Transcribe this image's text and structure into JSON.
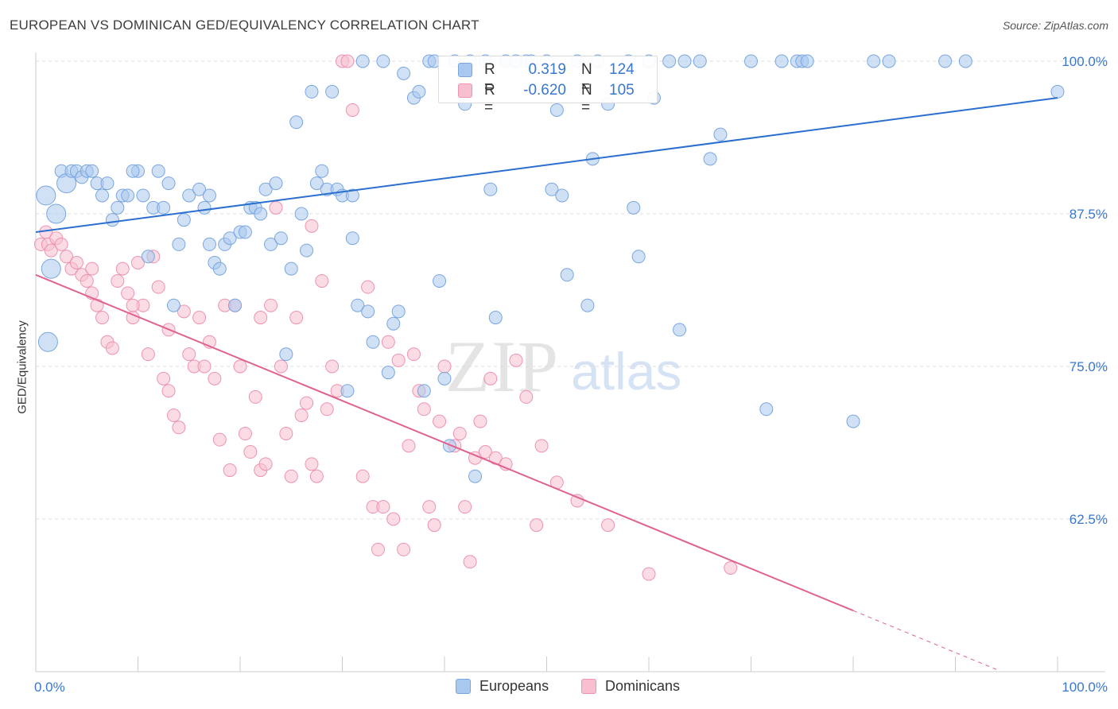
{
  "header": {
    "title": "EUROPEAN VS DOMINICAN GED/EQUIVALENCY CORRELATION CHART",
    "source": "Source: ZipAtlas.com"
  },
  "watermark": {
    "zip": "ZIP",
    "atlas": "atlas"
  },
  "legend": {
    "r_label": "R =",
    "n_label": "N =",
    "rows": [
      {
        "r": "0.319",
        "n": "124"
      },
      {
        "r": "-0.620",
        "n": "105"
      }
    ]
  },
  "colors": {
    "blue_fill": "#a9c8ef",
    "blue_stroke": "#7aa6e0",
    "blue_line": "#2a6fcf",
    "pink_fill": "#f7bfd0",
    "pink_stroke": "#ee93b0",
    "pink_line": "#e0628e",
    "tick_label": "#3a77cf",
    "grid": "#dddddd"
  },
  "chart_data": {
    "type": "scatter",
    "title": "EUROPEAN VS DOMINICAN GED/EQUIVALENCY CORRELATION CHART",
    "xlabel": "",
    "ylabel": "GED/Equivalency",
    "xlim": [
      0,
      100
    ],
    "ylim": [
      50,
      100
    ],
    "x_tick_labels": [
      "0.0%",
      "100.0%"
    ],
    "y_ticks": [
      62.5,
      75.0,
      87.5,
      100.0
    ],
    "y_tick_labels": [
      "62.5%",
      "75.0%",
      "87.5%",
      "100.0%"
    ],
    "grid": true,
    "legend_position": "bottom-center",
    "series": [
      {
        "name": "Europeans",
        "r": 0.319,
        "n": 124,
        "trend": {
          "x": [
            0,
            100
          ],
          "y": [
            86.0,
            97.0
          ]
        },
        "points": [
          [
            1,
            89
          ],
          [
            1.2,
            77
          ],
          [
            1.5,
            83
          ],
          [
            2,
            87.5
          ],
          [
            2.5,
            91
          ],
          [
            3,
            90
          ],
          [
            3.5,
            91
          ],
          [
            4,
            91
          ],
          [
            4.5,
            90.5
          ],
          [
            5,
            91
          ],
          [
            5.5,
            91
          ],
          [
            6,
            90
          ],
          [
            6.5,
            89
          ],
          [
            7,
            90
          ],
          [
            8,
            88
          ],
          [
            8.5,
            89
          ],
          [
            9,
            89
          ],
          [
            10,
            91
          ],
          [
            10.5,
            89
          ],
          [
            11,
            84
          ],
          [
            11.5,
            88
          ],
          [
            12,
            91
          ],
          [
            12.5,
            88
          ],
          [
            13,
            90
          ],
          [
            13.5,
            80
          ],
          [
            14,
            85
          ],
          [
            14.5,
            87
          ],
          [
            15,
            89
          ],
          [
            16,
            89.5
          ],
          [
            16.5,
            88
          ],
          [
            17,
            85
          ],
          [
            17.5,
            83.5
          ],
          [
            18,
            83
          ],
          [
            18.5,
            85
          ],
          [
            19,
            85.5
          ],
          [
            19.5,
            80
          ],
          [
            20,
            86
          ],
          [
            20.5,
            86
          ],
          [
            21,
            88
          ],
          [
            21.5,
            88
          ],
          [
            22,
            87.5
          ],
          [
            22.5,
            89.5
          ],
          [
            23,
            85
          ],
          [
            23.5,
            90
          ],
          [
            24,
            85.5
          ],
          [
            24.5,
            76
          ],
          [
            25,
            83
          ],
          [
            25.5,
            95
          ],
          [
            26,
            87.5
          ],
          [
            26.5,
            84.5
          ],
          [
            27,
            97.5
          ],
          [
            27.5,
            90
          ],
          [
            28,
            91
          ],
          [
            28.5,
            89.5
          ],
          [
            29,
            97.5
          ],
          [
            29.5,
            89.5
          ],
          [
            30,
            89
          ],
          [
            30.5,
            73
          ],
          [
            31,
            85.5
          ],
          [
            31.5,
            80
          ],
          [
            32,
            100
          ],
          [
            32.5,
            79.5
          ],
          [
            33,
            77
          ],
          [
            34,
            100
          ],
          [
            34.5,
            74.5
          ],
          [
            35,
            78.5
          ],
          [
            35.5,
            79.5
          ],
          [
            36,
            99
          ],
          [
            37,
            97
          ],
          [
            37.5,
            97.5
          ],
          [
            38,
            73
          ],
          [
            38.5,
            100
          ],
          [
            39,
            100
          ],
          [
            39.5,
            82
          ],
          [
            40,
            74
          ],
          [
            40.5,
            68.5
          ],
          [
            41,
            100
          ],
          [
            42,
            96.5
          ],
          [
            42.5,
            100
          ],
          [
            43,
            66
          ],
          [
            44,
            100
          ],
          [
            44.5,
            89.5
          ],
          [
            45,
            79
          ],
          [
            46,
            100
          ],
          [
            47,
            100
          ],
          [
            48,
            100
          ],
          [
            48.5,
            100
          ],
          [
            50,
            100
          ],
          [
            50.5,
            89.5
          ],
          [
            51,
            96
          ],
          [
            51.5,
            89
          ],
          [
            52,
            82.5
          ],
          [
            53,
            100
          ],
          [
            54,
            80
          ],
          [
            54.5,
            92
          ],
          [
            55,
            100
          ],
          [
            56,
            96.5
          ],
          [
            58,
            100
          ],
          [
            58.5,
            88
          ],
          [
            59,
            84
          ],
          [
            60,
            100
          ],
          [
            60.5,
            97
          ],
          [
            62,
            100
          ],
          [
            63,
            78
          ],
          [
            63.5,
            100
          ],
          [
            65,
            100
          ],
          [
            66,
            92
          ],
          [
            67,
            94
          ],
          [
            70,
            100
          ],
          [
            71.5,
            71.5
          ],
          [
            73,
            100
          ],
          [
            74.5,
            100
          ],
          [
            75,
            100
          ],
          [
            75.5,
            100
          ],
          [
            80,
            70.5
          ],
          [
            82,
            100
          ],
          [
            83.5,
            100
          ],
          [
            89,
            100
          ],
          [
            91,
            100
          ],
          [
            100,
            97.5
          ],
          [
            7.5,
            87
          ],
          [
            9.5,
            91
          ],
          [
            17,
            89
          ],
          [
            31,
            89
          ]
        ]
      },
      {
        "name": "Dominicans",
        "r": -0.62,
        "n": 105,
        "trend": {
          "x": [
            0,
            80
          ],
          "y": [
            82.5,
            55.0
          ],
          "dashed_extension_x": [
            80,
            94
          ]
        },
        "points": [
          [
            0.5,
            85
          ],
          [
            1,
            86
          ],
          [
            1.2,
            85
          ],
          [
            1.5,
            84.5
          ],
          [
            2,
            85.5
          ],
          [
            2.5,
            85
          ],
          [
            3,
            84
          ],
          [
            3.5,
            83
          ],
          [
            4,
            83.5
          ],
          [
            4.5,
            82.5
          ],
          [
            5,
            82
          ],
          [
            5.5,
            81
          ],
          [
            6,
            80
          ],
          [
            6.5,
            79
          ],
          [
            7,
            77
          ],
          [
            7.5,
            76.5
          ],
          [
            8,
            82
          ],
          [
            8.5,
            83
          ],
          [
            9,
            81
          ],
          [
            9.5,
            79
          ],
          [
            10,
            83.5
          ],
          [
            10.5,
            80
          ],
          [
            11,
            76
          ],
          [
            11.5,
            84
          ],
          [
            12,
            81.5
          ],
          [
            12.5,
            74
          ],
          [
            13,
            78
          ],
          [
            13.5,
            71
          ],
          [
            14,
            70
          ],
          [
            14.5,
            79.5
          ],
          [
            15,
            76
          ],
          [
            15.5,
            75
          ],
          [
            16,
            79
          ],
          [
            16.5,
            75
          ],
          [
            17,
            77
          ],
          [
            17.5,
            74
          ],
          [
            18,
            69
          ],
          [
            18.5,
            80
          ],
          [
            19,
            66.5
          ],
          [
            19.5,
            80
          ],
          [
            20,
            75
          ],
          [
            20.5,
            69.5
          ],
          [
            21,
            68
          ],
          [
            21.5,
            72.5
          ],
          [
            22,
            66.5
          ],
          [
            22.5,
            67
          ],
          [
            23,
            80
          ],
          [
            23.5,
            88
          ],
          [
            24,
            75
          ],
          [
            24.5,
            69.5
          ],
          [
            25,
            66
          ],
          [
            25.5,
            79
          ],
          [
            26,
            71
          ],
          [
            26.5,
            72
          ],
          [
            27,
            67
          ],
          [
            27.5,
            66
          ],
          [
            28,
            82
          ],
          [
            28.5,
            71.5
          ],
          [
            29,
            75
          ],
          [
            29.5,
            73
          ],
          [
            30,
            100
          ],
          [
            30.5,
            100
          ],
          [
            31,
            96
          ],
          [
            32,
            66
          ],
          [
            32.5,
            81.5
          ],
          [
            33,
            63.5
          ],
          [
            33.5,
            60
          ],
          [
            34,
            63.5
          ],
          [
            34.5,
            77
          ],
          [
            35,
            62.5
          ],
          [
            35.5,
            75.5
          ],
          [
            36,
            60
          ],
          [
            36.5,
            68.5
          ],
          [
            37,
            76
          ],
          [
            37.5,
            73
          ],
          [
            38,
            71.5
          ],
          [
            38.5,
            63.5
          ],
          [
            39,
            62
          ],
          [
            39.5,
            70.5
          ],
          [
            40,
            75
          ],
          [
            41,
            68.5
          ],
          [
            41.5,
            69.5
          ],
          [
            42,
            63.5
          ],
          [
            42.5,
            59
          ],
          [
            43,
            67.5
          ],
          [
            43.5,
            70.5
          ],
          [
            44,
            68
          ],
          [
            44.5,
            74
          ],
          [
            45,
            67.5
          ],
          [
            46,
            67
          ],
          [
            47,
            75.5
          ],
          [
            48,
            72.5
          ],
          [
            49,
            62
          ],
          [
            49.5,
            68.5
          ],
          [
            51,
            65.5
          ],
          [
            53,
            64
          ],
          [
            56,
            62
          ],
          [
            60,
            58
          ],
          [
            68,
            58.5
          ],
          [
            5.5,
            83
          ],
          [
            9.5,
            80
          ],
          [
            13,
            73
          ],
          [
            22,
            79
          ],
          [
            27,
            86.5
          ]
        ]
      }
    ]
  },
  "bottom_legend": [
    "Europeans",
    "Dominicans"
  ]
}
